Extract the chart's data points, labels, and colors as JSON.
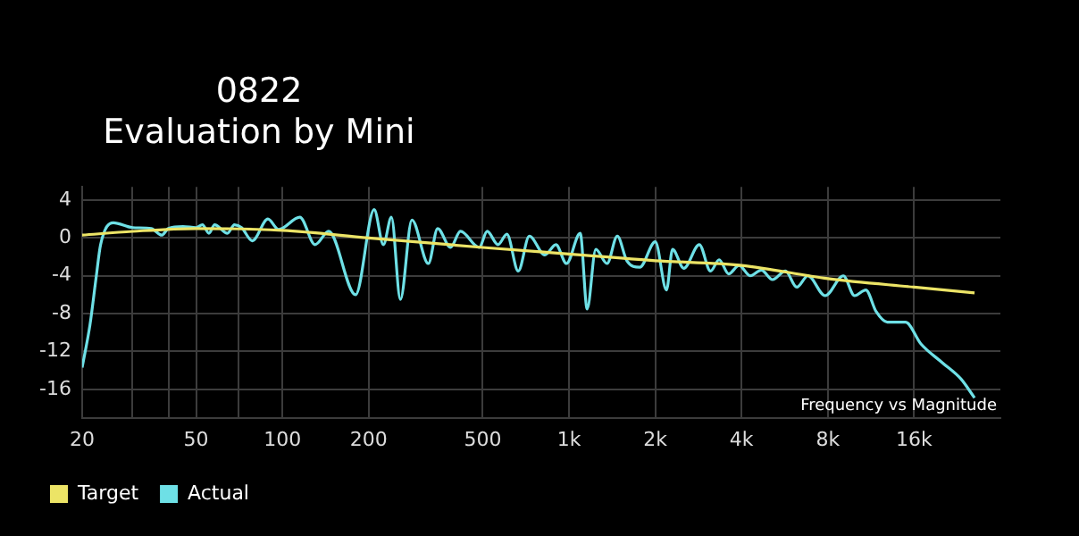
{
  "chart_data": {
    "type": "line",
    "title": "0822",
    "subtitle": "Evaluation by Mini",
    "annotations": [
      "Frequency vs Magnitude"
    ],
    "log": "x",
    "grid": true,
    "legend": "bottom left",
    "marker": "none",
    "line_style": "solid",
    "xlim": [
      20,
      32000
    ],
    "xticks": [
      20,
      {
        "value": 30,
        "label": null
      },
      {
        "value": 40,
        "label": null
      },
      50,
      {
        "value": 70,
        "label": null
      },
      100,
      200,
      500,
      {
        "value": 1000,
        "label": "1k"
      },
      {
        "value": 2000,
        "label": "2k"
      },
      {
        "value": 4000,
        "label": "4k"
      },
      {
        "value": 8000,
        "label": "8k"
      },
      {
        "value": 16000,
        "label": "16k"
      }
    ],
    "ylim": [
      -19,
      5.4
    ],
    "yticks": [
      -16,
      -12,
      -8,
      -4,
      0,
      4
    ],
    "series": [
      {
        "name": "Target",
        "color": "#ece466",
        "x": [
          20,
          30,
          50,
          100,
          200,
          500,
          1000,
          2000,
          4000,
          8000,
          16000,
          26000
        ],
        "values": [
          0.3,
          0.7,
          1.0,
          0.8,
          0,
          -1.0,
          -1.7,
          -2.4,
          -2.9,
          -4.3,
          -5.2,
          -5.8
        ]
      },
      {
        "name": "Actual",
        "color": "#6ee0e6",
        "x": [
          20,
          21.3,
          22.4,
          23.2,
          25.7,
          30,
          34.9,
          37.9,
          40,
          45,
          50,
          52.6,
          55.4,
          58,
          64.3,
          68,
          72,
          78.5,
          89,
          97,
          115,
          130,
          145,
          180,
          209,
          225,
          240,
          258,
          283,
          323,
          348,
          386,
          418,
          486,
          518,
          565,
          607,
          665,
          727,
          823,
          900,
          980,
          1094,
          1157,
          1240,
          1357,
          1474,
          1591,
          1765,
          2000,
          2188,
          2297,
          2514,
          2848,
          3117,
          3340,
          3605,
          3920,
          4287,
          4690,
          5130,
          5690,
          6233,
          6815,
          7830,
          9060,
          9915,
          10850,
          11800,
          12900,
          14930,
          16900,
          20100,
          23300,
          26000
        ],
        "values": [
          -13.7,
          -9.2,
          -4.1,
          -0.7,
          1.6,
          1.1,
          1.0,
          0.3,
          1.0,
          1.2,
          1.1,
          1.4,
          0.5,
          1.4,
          0.5,
          1.4,
          1.1,
          -0.3,
          2.0,
          0.9,
          2.2,
          -0.7,
          0.7,
          -6.0,
          3.0,
          -0.7,
          2.2,
          -6.5,
          1.9,
          -2.7,
          1.0,
          -1.0,
          0.7,
          -1.0,
          0.7,
          -0.7,
          0.4,
          -3.5,
          0.2,
          -1.8,
          -0.7,
          -2.7,
          0.5,
          -7.5,
          -1.2,
          -2.7,
          0.2,
          -2.4,
          -3.1,
          -0.4,
          -5.5,
          -1.2,
          -3.2,
          -0.7,
          -3.5,
          -2.3,
          -3.8,
          -2.9,
          -4.0,
          -3.4,
          -4.4,
          -3.5,
          -5.2,
          -4.0,
          -6.1,
          -4.0,
          -6.1,
          -5.5,
          -7.8,
          -8.9,
          -8.9,
          -11.2,
          -13.2,
          -14.9,
          -16.9
        ]
      }
    ]
  }
}
